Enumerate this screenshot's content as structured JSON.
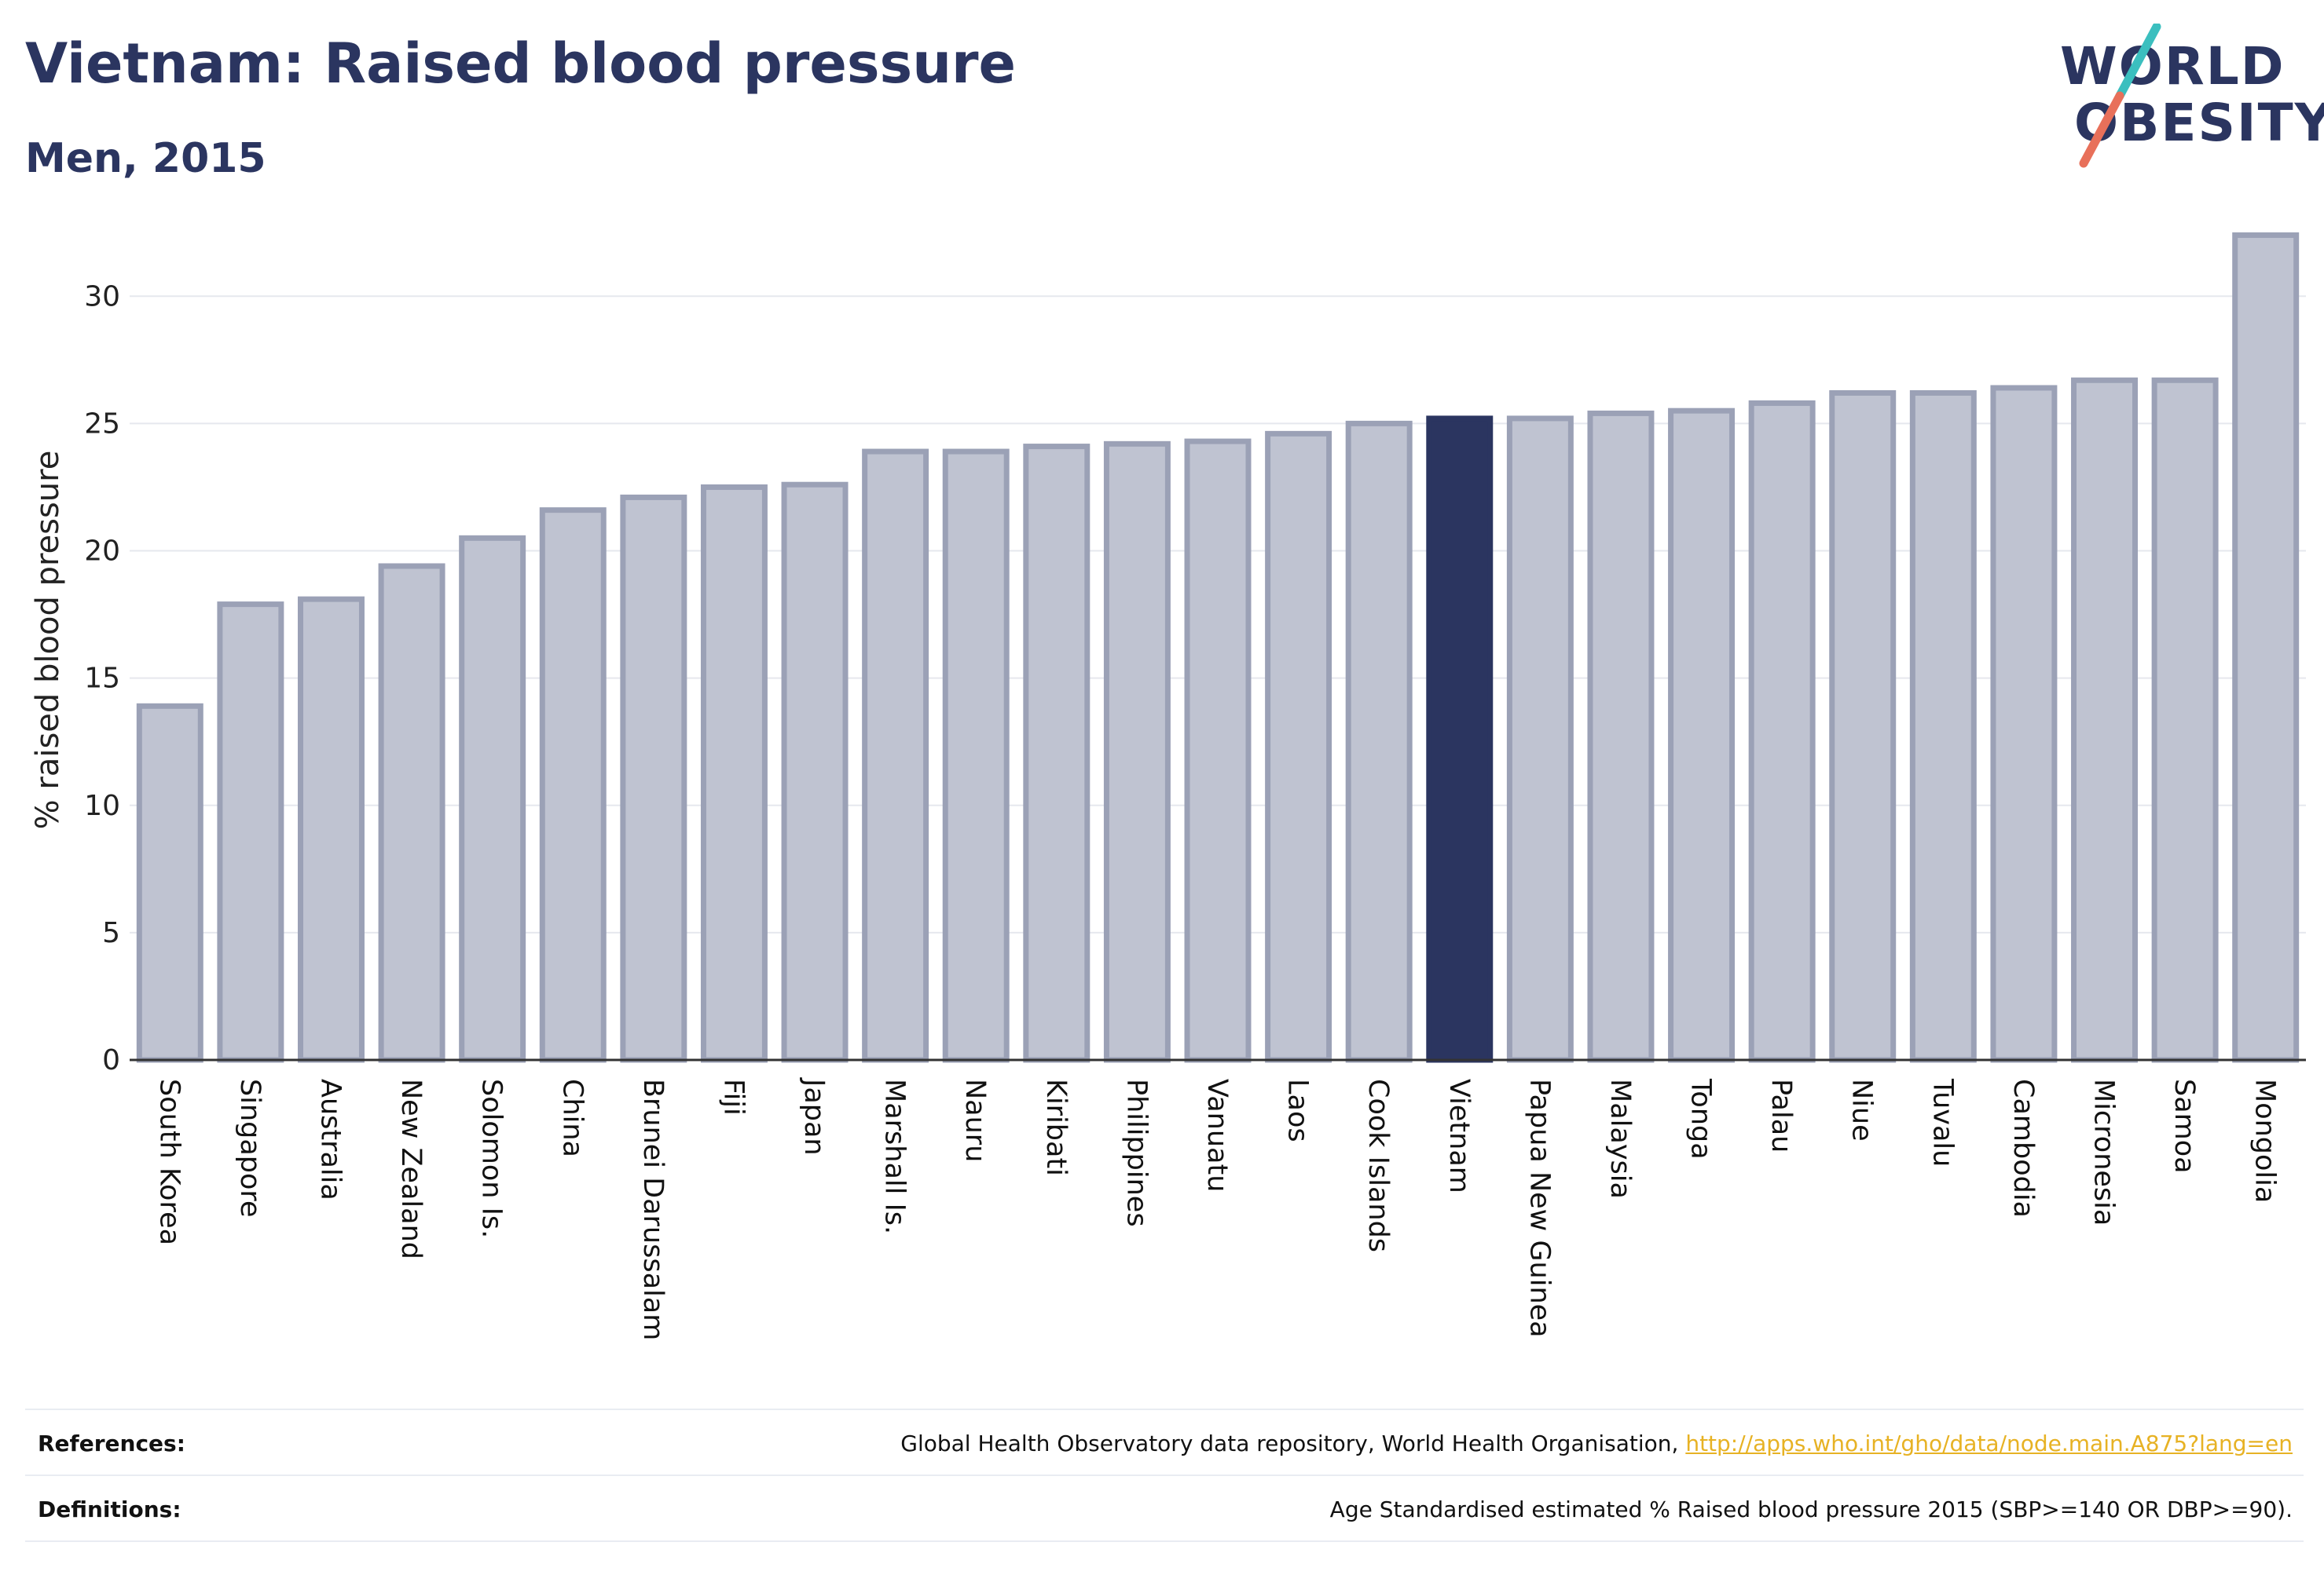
{
  "header": {
    "title": "Vietnam: Raised blood pressure",
    "subtitle": "Men, 2015"
  },
  "logo": {
    "line1": "WORLD",
    "line2": "OBESITY",
    "colors": {
      "text": "#2b3560",
      "slash_top": "#3bbfbf",
      "slash_bottom": "#e8705a"
    }
  },
  "colors": {
    "bar_default": "#bfc3d1",
    "bar_border": "#9ba1b6",
    "bar_highlight": "#2b3560",
    "grid": "#e6e8ee",
    "axis": "#333333"
  },
  "chart_data": {
    "type": "bar",
    "title": "Vietnam: Raised blood pressure",
    "subtitle": "Men, 2015",
    "ylabel": "% raised blood pressure",
    "xlabel": "",
    "ylim": [
      0,
      33
    ],
    "yticks": [
      0,
      5,
      10,
      15,
      20,
      25,
      30
    ],
    "grid": true,
    "highlight": "Vietnam",
    "categories": [
      "South Korea",
      "Singapore",
      "Australia",
      "New Zealand",
      "Solomon Is.",
      "China",
      "Brunei Darussalam",
      "Fiji",
      "Japan",
      "Marshall Is.",
      "Nauru",
      "Kiribati",
      "Philippines",
      "Vanuatu",
      "Laos",
      "Cook Islands",
      "Vietnam",
      "Papua New Guinea",
      "Malaysia",
      "Tonga",
      "Palau",
      "Niue",
      "Tuvalu",
      "Cambodia",
      "Micronesia",
      "Samoa",
      "Mongolia"
    ],
    "values": [
      13.9,
      17.9,
      18.1,
      19.4,
      20.5,
      21.6,
      22.1,
      22.5,
      22.6,
      23.9,
      23.9,
      24.1,
      24.2,
      24.3,
      24.6,
      25.0,
      25.2,
      25.2,
      25.4,
      25.5,
      25.8,
      26.2,
      26.2,
      26.4,
      26.7,
      26.7,
      32.4
    ]
  },
  "footer": {
    "references_label": "References:",
    "references_text": "Global Health Observatory data repository, World Health Organisation, ",
    "references_link": "http://apps.who.int/gho/data/node.main.A875?lang=en",
    "definitions_label": "Definitions:",
    "definitions_text": "Age Standardised estimated % Raised blood pressure 2015 (SBP>=140 OR DBP>=90)."
  }
}
